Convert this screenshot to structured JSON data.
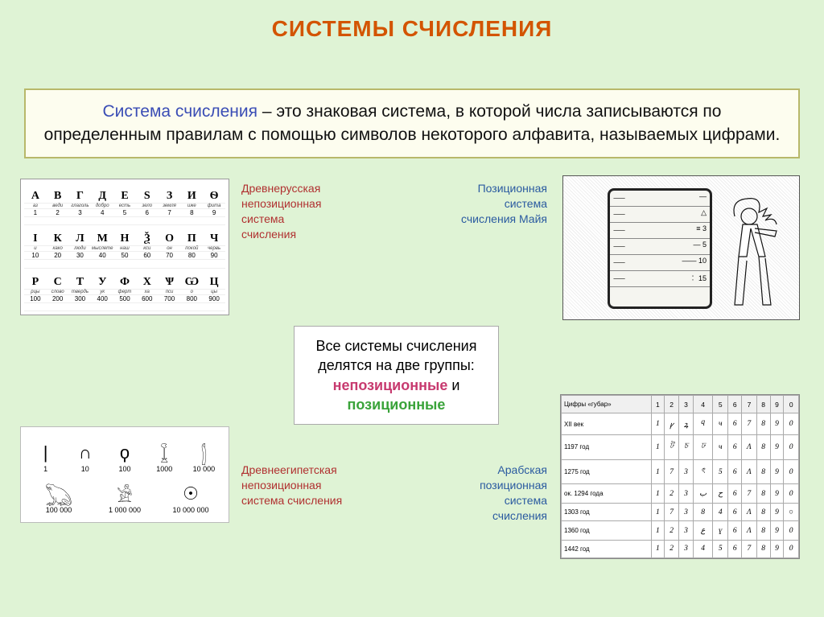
{
  "colors": {
    "slide_bg": "#dff3d5",
    "title": "#d35400",
    "def_bg": "#fdfdef",
    "def_border": "#b8b86a",
    "def_term": "#3a4db5",
    "cap_red": "#b03030",
    "cap_blue": "#2a5aa0",
    "nepoz": "#c73a6f",
    "poz": "#3aa33a"
  },
  "title": "СИСТЕМЫ СЧИСЛЕНИЯ",
  "definition": {
    "term": "Система счисления",
    "rest": " – это знаковая система, в которой числа записываются по определенным правилам с помощью символов некоторого алфавита, называемых цифрами."
  },
  "captions": {
    "oldrus": "Древнерусская непозиционная система счисления",
    "maya": "Позиционная система счисления Майя",
    "egypt": "Древнеегипетская непозиционная система счисления",
    "arab": "Арабская позиционная система счисления"
  },
  "center": {
    "line1": "Все системы счисления делятся на две группы: ",
    "w1": "непозиционные",
    "mid": " и ",
    "w2": "позиционные"
  },
  "oldrus_table": {
    "rows": [
      {
        "glyphs": [
          "А",
          "В",
          "Г",
          "Д",
          "Е",
          "Ѕ",
          "З",
          "И",
          "Ѳ"
        ],
        "names": [
          "аз",
          "веди",
          "глаголь",
          "добро",
          "есть",
          "зело",
          "земля",
          "иже",
          "фита"
        ],
        "nums": [
          "1",
          "2",
          "3",
          "4",
          "5",
          "6",
          "7",
          "8",
          "9"
        ]
      },
      {
        "glyphs": [
          "І",
          "К",
          "Л",
          "М",
          "Н",
          "Ѯ",
          "О",
          "П",
          "Ч"
        ],
        "names": [
          "и",
          "како",
          "люди",
          "мыслете",
          "наш",
          "кси",
          "он",
          "покой",
          "червь"
        ],
        "nums": [
          "10",
          "20",
          "30",
          "40",
          "50",
          "60",
          "70",
          "80",
          "90"
        ]
      },
      {
        "glyphs": [
          "Р",
          "С",
          "Т",
          "У",
          "Ф",
          "Х",
          "Ѱ",
          "Ѡ",
          "Ц"
        ],
        "names": [
          "рцы",
          "слово",
          "твердь",
          "ук",
          "ферт",
          "ха",
          "пси",
          "о",
          "цы"
        ],
        "nums": [
          "100",
          "200",
          "300",
          "400",
          "500",
          "600",
          "700",
          "800",
          "900"
        ]
      }
    ]
  },
  "maya_rows": [
    "—",
    "△",
    "≡ 3",
    "— 5",
    "—— 10",
    "︰ 15"
  ],
  "egypt": {
    "row1": [
      {
        "s": "|",
        "l": "1"
      },
      {
        "s": "∩",
        "l": "10"
      },
      {
        "s": "ϙ",
        "l": "100"
      },
      {
        "s": "𓆼",
        "l": "1000"
      },
      {
        "s": "𓂭",
        "l": "10 000"
      }
    ],
    "row2": [
      {
        "s": "𓆏",
        "l": "100 000"
      },
      {
        "s": "𓀀",
        "l": "1 000 000"
      },
      {
        "s": "☉",
        "l": "10 000 000"
      }
    ]
  },
  "arab_table": {
    "header_title": "Цифры «губар»",
    "cols": [
      "1",
      "2",
      "3",
      "4",
      "5",
      "6",
      "7",
      "8",
      "9",
      "0"
    ],
    "rows": [
      {
        "y": "XII век",
        "g": [
          "1",
          "ꝩ",
          "ꝝ",
          "ϥ",
          "ч",
          "6",
          "7",
          "8",
          "9",
          "0"
        ]
      },
      {
        "y": "1197 год",
        "g": [
          "1",
          "ট",
          "চ",
          "ঢ",
          "ч",
          "6",
          "Λ",
          "8",
          "9",
          "0"
        ]
      },
      {
        "y": "1275 год",
        "g": [
          "1",
          "7",
          "3",
          "ৎ",
          "5",
          "6",
          "Λ",
          "8",
          "9",
          "0"
        ]
      },
      {
        "y": "ок. 1294 года",
        "g": [
          "1",
          "2",
          "3",
          "ب",
          "ح",
          "6",
          "7",
          "8",
          "9",
          "0"
        ]
      },
      {
        "y": "1303 год",
        "g": [
          "1",
          "7",
          "3",
          "8",
          "4",
          "6",
          "Λ",
          "8",
          "9",
          "○"
        ]
      },
      {
        "y": "1360 год",
        "g": [
          "1",
          "2",
          "3",
          "ع",
          "ɣ",
          "6",
          "Λ",
          "8",
          "9",
          "0"
        ]
      },
      {
        "y": "1442 год",
        "g": [
          "1",
          "2",
          "3",
          "4",
          "5",
          "6",
          "7",
          "8",
          "9",
          "0"
        ]
      }
    ]
  }
}
